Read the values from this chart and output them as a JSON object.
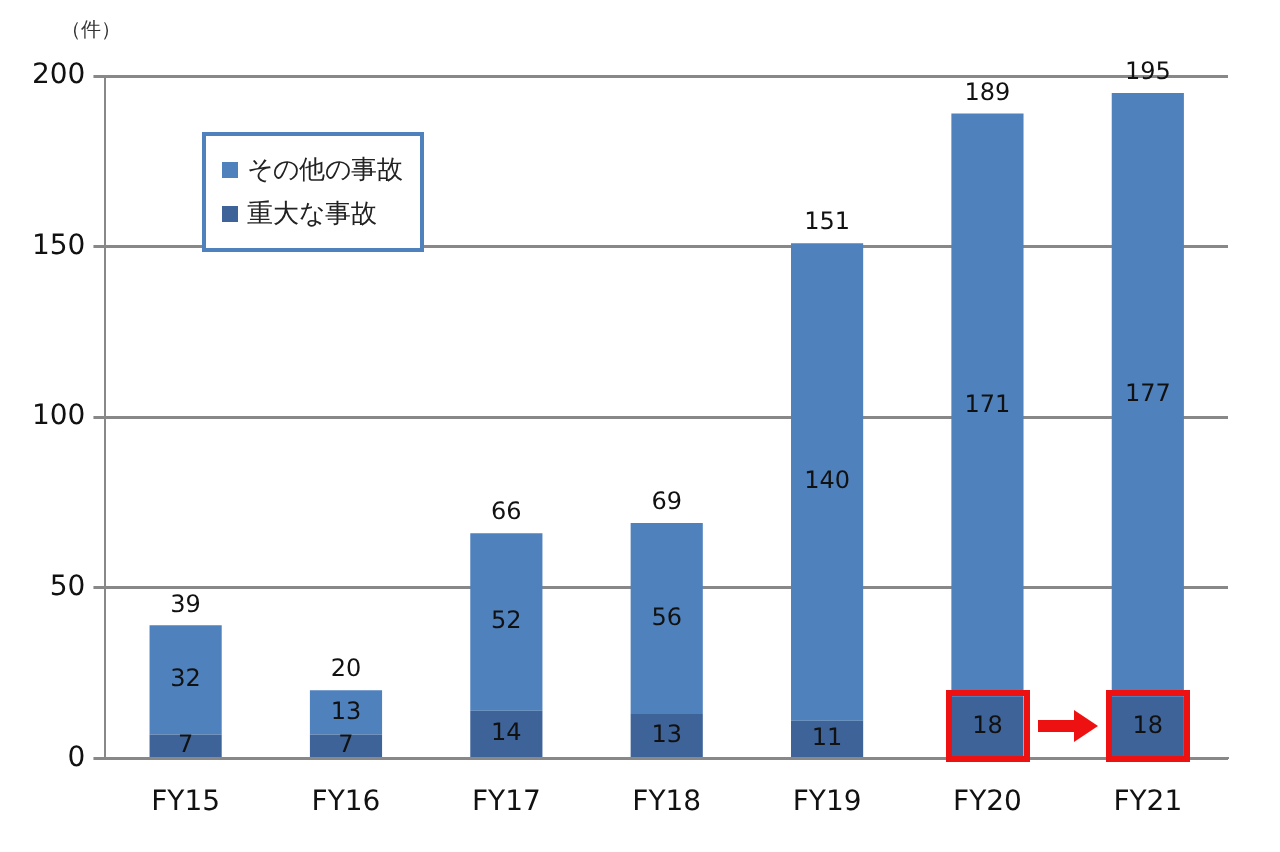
{
  "chart_data": {
    "type": "bar",
    "ylabel": "（件）",
    "categories": [
      "FY15",
      "FY16",
      "FY17",
      "FY18",
      "FY19",
      "FY20",
      "FY21"
    ],
    "series": [
      {
        "name": "重大な事故",
        "color": "#3e6398",
        "values": [
          7,
          7,
          14,
          13,
          11,
          18,
          18
        ]
      },
      {
        "name": "その他の事故",
        "color": "#4f81bd",
        "values": [
          32,
          13,
          52,
          56,
          140,
          171,
          177
        ]
      }
    ],
    "stacked": true,
    "data_labels": true,
    "totals": [
      "39",
      "20",
      "66",
      "69",
      "151",
      "189",
      "195"
    ],
    "ylim": [
      0,
      200
    ],
    "yticks": [
      0,
      50,
      100,
      150,
      200
    ],
    "grid": "y",
    "legend": "top left"
  }
}
